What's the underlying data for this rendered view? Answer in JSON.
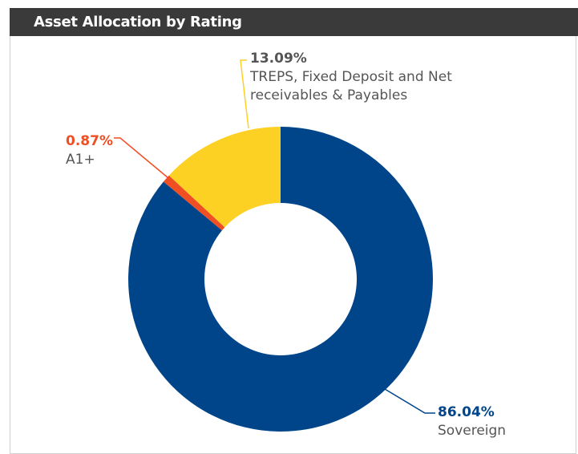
{
  "chart_data": {
    "type": "donut",
    "title": "Asset Allocation by Rating",
    "categories": [
      "Sovereign",
      "A1+",
      "TREPS, Fixed Deposit and Net receivables & Payables"
    ],
    "values": [
      86.04,
      0.87,
      13.09
    ],
    "value_labels": [
      "86.04%",
      "0.87%",
      "13.09%"
    ],
    "colors": [
      "#00458a",
      "#f04e23",
      "#fdd123"
    ]
  }
}
